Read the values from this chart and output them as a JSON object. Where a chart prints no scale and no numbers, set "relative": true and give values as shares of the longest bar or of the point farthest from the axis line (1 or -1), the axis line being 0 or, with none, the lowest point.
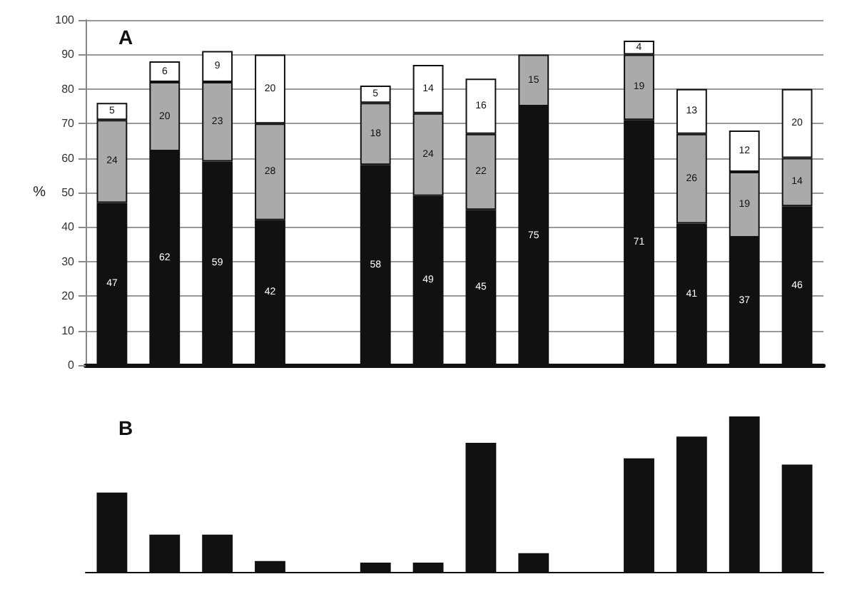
{
  "chart_data": [
    {
      "type": "bar",
      "title": "A",
      "ylabel": "%",
      "stacked": true,
      "data_labels": true,
      "grid": "y",
      "categories": [
        null,
        null,
        null,
        null,
        null,
        null,
        null,
        null,
        null,
        null,
        null,
        null,
        null,
        null
      ],
      "ylim": [
        0,
        100
      ],
      "yticks": [
        0,
        10,
        20,
        30,
        40,
        50,
        60,
        70,
        80,
        90,
        100
      ],
      "series": [
        {
          "color": "#111111",
          "values": [
            47,
            62,
            59,
            42,
            null,
            58,
            49,
            45,
            75,
            null,
            71,
            41,
            37,
            46
          ]
        },
        {
          "color": "#aaaaaa",
          "values": [
            24,
            20,
            23,
            28,
            null,
            18,
            24,
            22,
            15,
            null,
            19,
            26,
            19,
            14
          ]
        },
        {
          "color": "#ffffff",
          "values": [
            5,
            6,
            9,
            20,
            null,
            5,
            14,
            16,
            null,
            null,
            4,
            13,
            12,
            20
          ]
        }
      ]
    },
    {
      "type": "bar",
      "title": "B",
      "relative": true,
      "categories": [
        null,
        null,
        null,
        null,
        null,
        null,
        null,
        null,
        null,
        null,
        null,
        null,
        null,
        null
      ],
      "series": [
        {
          "color": "#111111",
          "values": [
            0.51,
            0.24,
            0.24,
            0.07,
            null,
            0.06,
            0.06,
            0.83,
            0.12,
            null,
            0.73,
            0.87,
            1,
            0.69
          ]
        }
      ]
    }
  ]
}
